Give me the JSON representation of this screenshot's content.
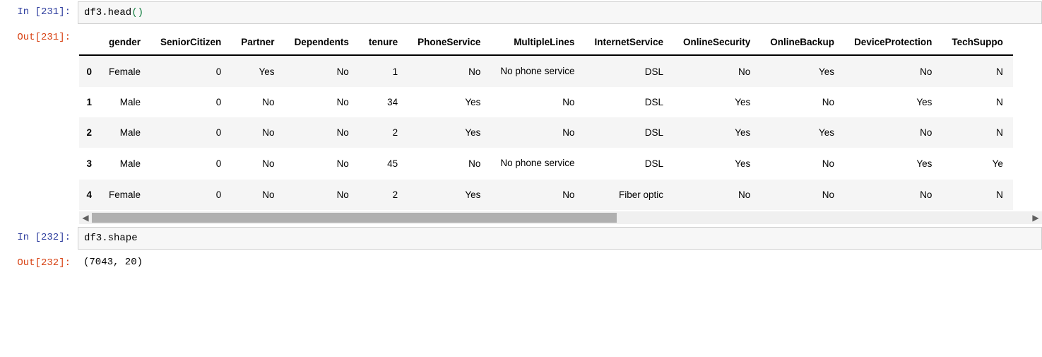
{
  "cells": {
    "cell1": {
      "in_prompt_prefix": "In  [",
      "in_prompt_num": "231",
      "in_prompt_suffix": "]:",
      "code_text1": "df3.head",
      "code_text2": "()",
      "out_prompt_prefix": "Out[",
      "out_prompt_num": "231",
      "out_prompt_suffix": "]:"
    },
    "cell2": {
      "in_prompt_prefix": "In  [",
      "in_prompt_num": "232",
      "in_prompt_suffix": "]:",
      "code_text": "df3.shape",
      "out_prompt_prefix": "Out[",
      "out_prompt_num": "232",
      "out_prompt_suffix": "]:",
      "out_text": "(7043, 20)"
    }
  },
  "dataframe": {
    "columns": [
      "gender",
      "SeniorCitizen",
      "Partner",
      "Dependents",
      "tenure",
      "PhoneService",
      "MultipleLines",
      "InternetService",
      "OnlineSecurity",
      "OnlineBackup",
      "DeviceProtection",
      "TechSuppo"
    ],
    "index": [
      "0",
      "1",
      "2",
      "3",
      "4"
    ],
    "rows": [
      [
        "Female",
        "0",
        "Yes",
        "No",
        "1",
        "No",
        "No phone service",
        "DSL",
        "No",
        "Yes",
        "No",
        "N"
      ],
      [
        "Male",
        "0",
        "No",
        "No",
        "34",
        "Yes",
        "No",
        "DSL",
        "Yes",
        "No",
        "Yes",
        "N"
      ],
      [
        "Male",
        "0",
        "No",
        "No",
        "2",
        "Yes",
        "No",
        "DSL",
        "Yes",
        "Yes",
        "No",
        "N"
      ],
      [
        "Male",
        "0",
        "No",
        "No",
        "45",
        "No",
        "No phone service",
        "DSL",
        "Yes",
        "No",
        "Yes",
        "Ye"
      ],
      [
        "Female",
        "0",
        "No",
        "No",
        "2",
        "Yes",
        "No",
        "Fiber optic",
        "No",
        "No",
        "No",
        "N"
      ]
    ],
    "wrap_columns": [
      6
    ],
    "header_bg": "#ffffff",
    "row_even_bg": "#f5f5f5",
    "row_odd_bg": "#ffffff",
    "border_color": "#000000"
  },
  "scrollbar": {
    "thumb_pct": 56,
    "thumb_left_pct": 0,
    "thumb_color": "#b0b0b0",
    "track_color": "#f0f0f0",
    "arrow_left_glyph": "◀",
    "arrow_right_glyph": "▶"
  }
}
